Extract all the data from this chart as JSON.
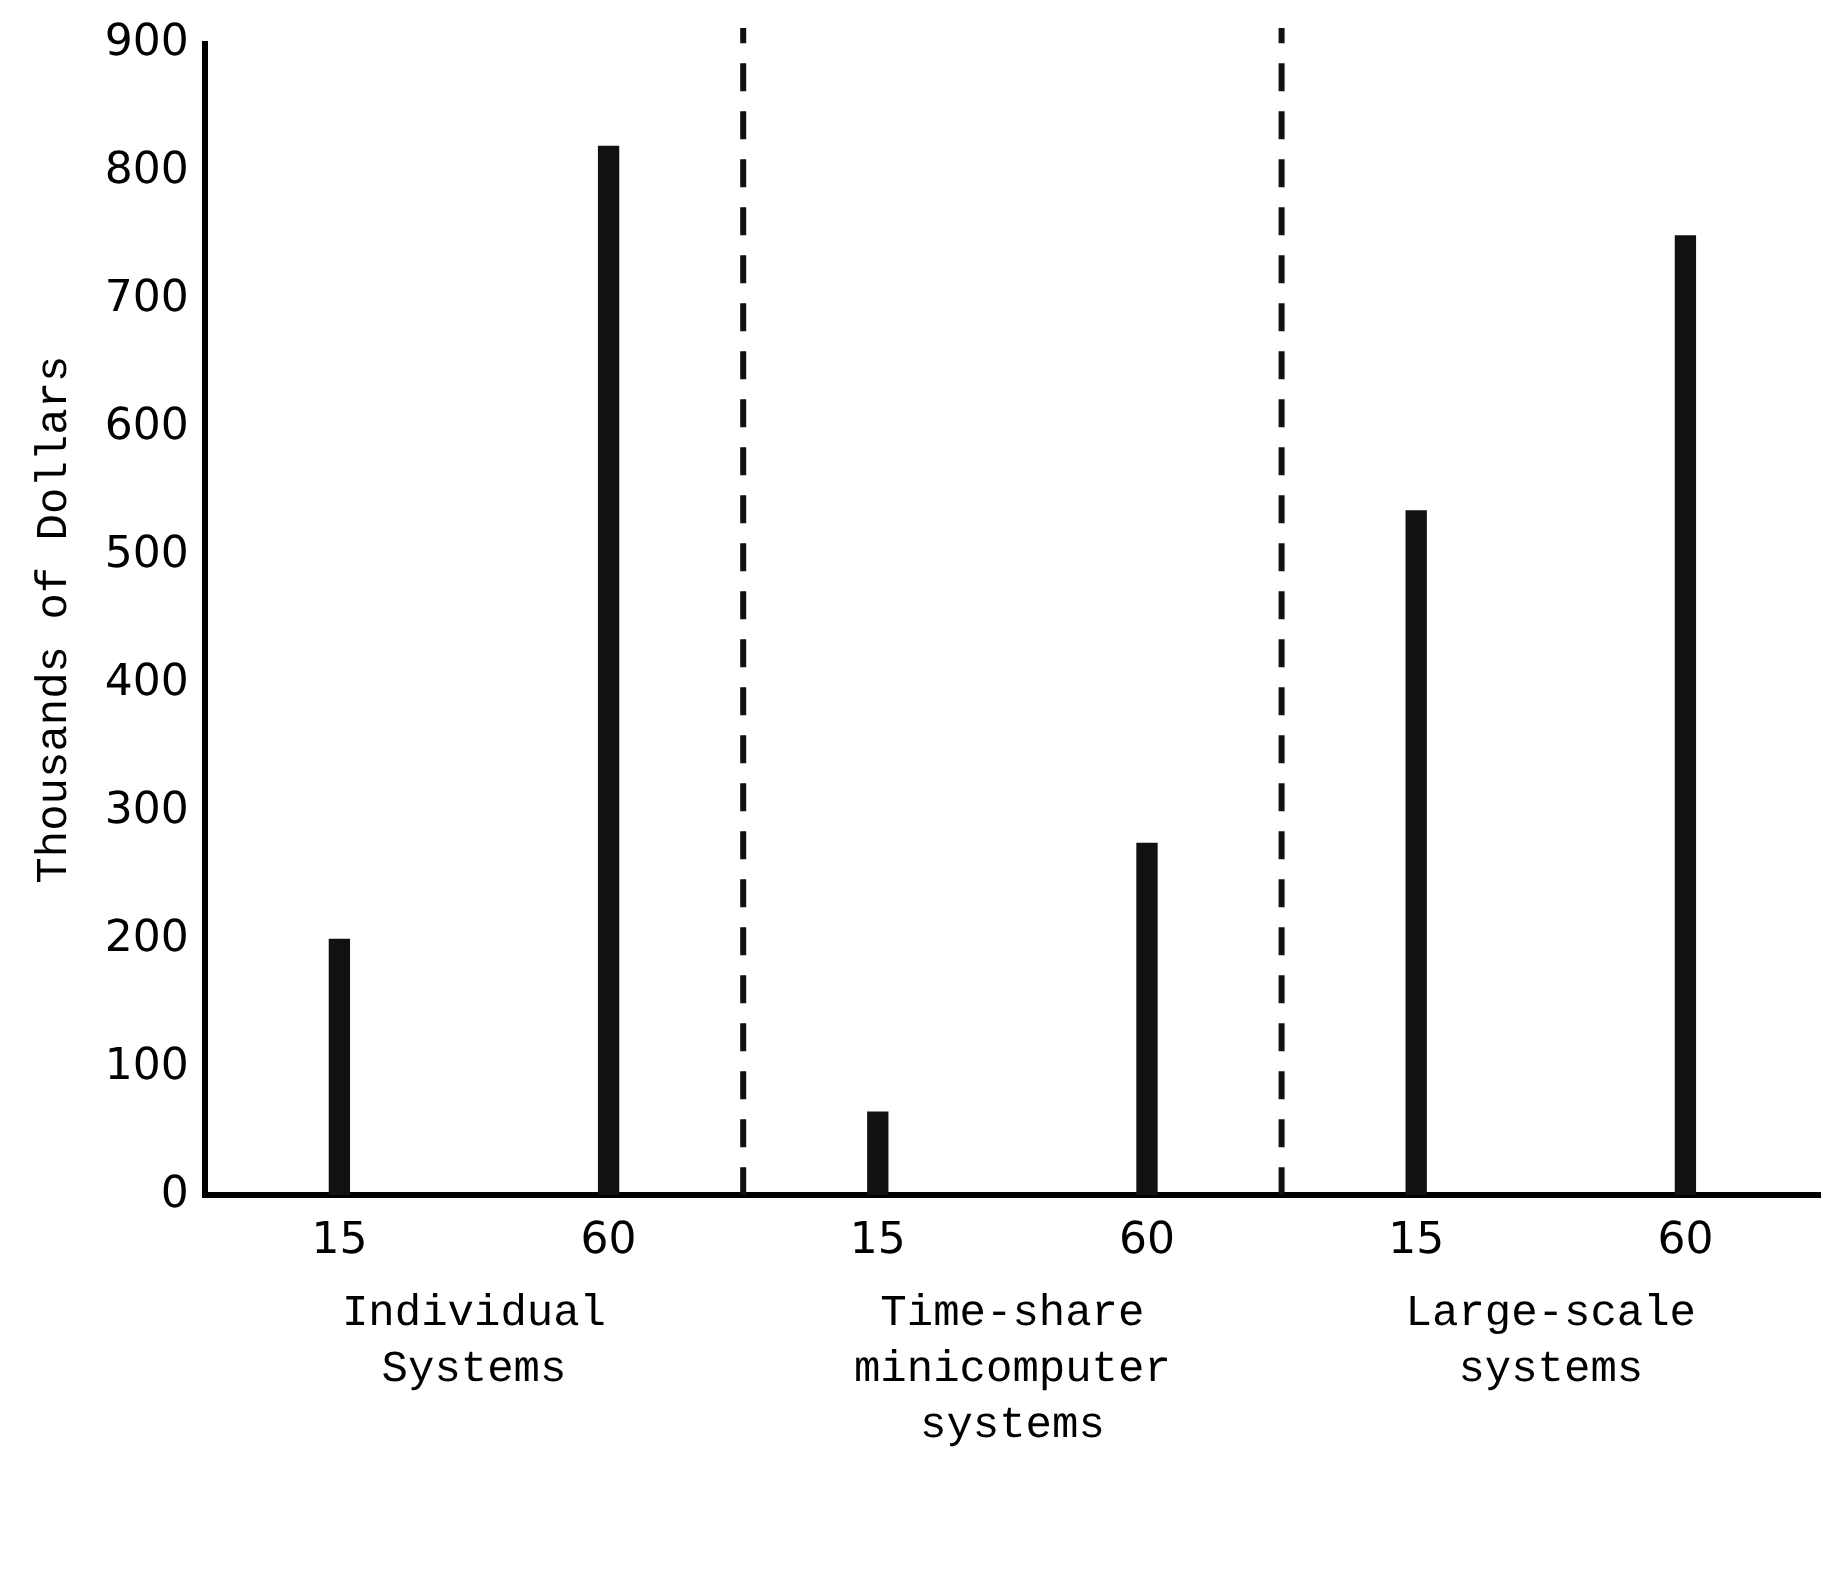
{
  "chart_data": {
    "type": "bar",
    "categories": [
      "15",
      "60",
      "15",
      "60",
      "15",
      "60"
    ],
    "values": [
      200,
      820,
      65,
      275,
      535,
      750
    ],
    "color": "#111111",
    "ylabel": "Thousands of Dollars",
    "ylim": [
      0,
      900
    ],
    "yticks": [
      0,
      100,
      200,
      300,
      400,
      500,
      600,
      700,
      800,
      900
    ],
    "grid": false,
    "legend": false,
    "annotations": [
      "Individual Systems",
      "Time-share minicomputer systems",
      "Large-scale systems"
    ]
  }
}
